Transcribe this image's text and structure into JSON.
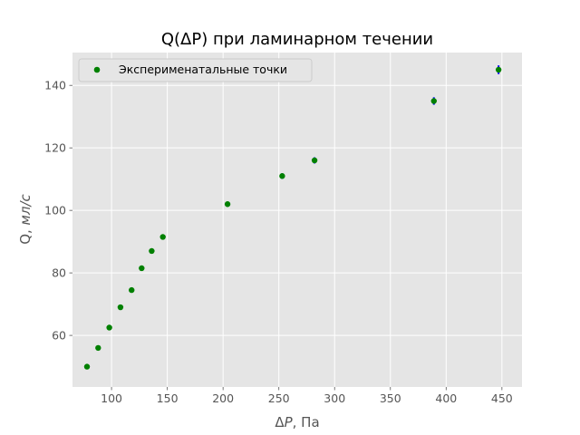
{
  "chart_data": {
    "type": "scatter",
    "title": "Q(ΔP) при ламинарном течении",
    "xlabel_main": "Δ",
    "xlabel_italic": "P",
    "xlabel_rest": ", Па",
    "ylabel_main": "Q, ",
    "ylabel_italic": "мл/с",
    "xlim": [
      65,
      468
    ],
    "ylim": [
      43.5,
      150.5
    ],
    "xticks": [
      100,
      150,
      200,
      250,
      300,
      350,
      400,
      450
    ],
    "yticks": [
      60,
      80,
      100,
      120,
      140
    ],
    "grid": true,
    "legend_position": "upper-left",
    "series": [
      {
        "name": "Эксперименатальные точки",
        "color": "#008000",
        "errorbar_color": "#0000ff",
        "x": [
          78,
          88,
          98,
          108,
          118,
          127,
          136,
          146,
          204,
          253,
          282,
          389,
          447
        ],
        "y": [
          50,
          56,
          62.5,
          69,
          74.5,
          81.5,
          87,
          91.5,
          102,
          111,
          116,
          135,
          145
        ],
        "yerr": [
          0.4,
          0.4,
          0.5,
          0.5,
          0.6,
          0.6,
          0.7,
          0.7,
          0.8,
          0.9,
          1.0,
          1.2,
          1.4
        ]
      }
    ]
  },
  "colors": {
    "plot_background": "#e5e5e5",
    "grid": "#ffffff",
    "tick_text": "#555555"
  }
}
